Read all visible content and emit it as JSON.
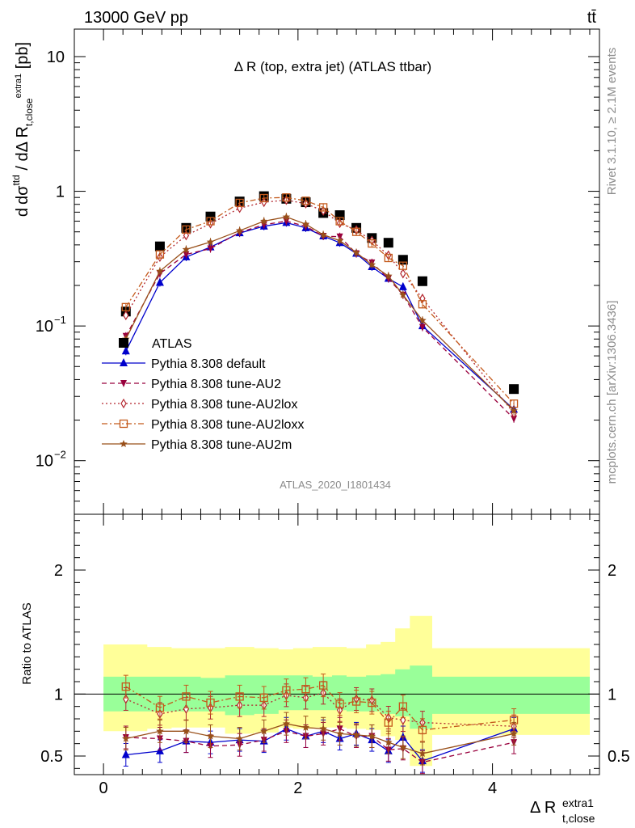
{
  "header": {
    "energy_label": "13000 GeV pp",
    "process_label": "tt̄"
  },
  "side_labels": {
    "rivet": "Rivet 3.1.10, ≥ 2.1M events",
    "mcplots": "mcplots.cern.ch [arXiv:1306.3436]"
  },
  "analysis_id": "ATLAS_2020_I1801434",
  "colors": {
    "data": "#000000",
    "default": "#0000cc",
    "au2": "#99003d",
    "au2lox": "#b3262e",
    "au2loxx": "#c45a1c",
    "au2m": "#99501a",
    "band_inner": "#99ff99",
    "band_outer": "#ffff99"
  },
  "chart_data": [
    {
      "type": "scatter",
      "title": "Δ R (top, extra jet) (ATLAS ttbar)",
      "ylabel": "dσ^ttd / dΔ R_t,close^extra1 [pb]",
      "yscale": "log",
      "ylim": [
        0.004,
        16
      ],
      "xlim": [
        -0.3,
        5.1
      ],
      "y_ticks": [
        {
          "value": 0.01,
          "base": "10",
          "exp": "−2"
        },
        {
          "value": 0.1,
          "base": "10",
          "exp": "−1"
        },
        {
          "value": 1,
          "base": "1",
          "exp": ""
        },
        {
          "value": 10,
          "base": "10",
          "exp": ""
        }
      ],
      "x": [
        0.23,
        0.58,
        0.85,
        1.1,
        1.4,
        1.65,
        1.88,
        2.08,
        2.26,
        2.43,
        2.6,
        2.76,
        2.93,
        3.08,
        3.28,
        4.22
      ],
      "series": [
        {
          "name": "ATLAS",
          "key": "data",
          "marker": "square",
          "values": [
            0.128,
            0.39,
            0.535,
            0.65,
            0.84,
            0.92,
            0.88,
            0.83,
            0.69,
            0.665,
            0.535,
            0.45,
            0.415,
            0.31,
            0.215,
            0.034
          ]
        },
        {
          "name": "Pythia 8.308 default",
          "key": "default",
          "marker": "triangle-up",
          "line": "solid",
          "values": [
            0.065,
            0.21,
            0.325,
            0.385,
            0.49,
            0.55,
            0.585,
            0.535,
            0.465,
            0.415,
            0.345,
            0.275,
            0.225,
            0.195,
            0.1,
            0.024
          ]
        },
        {
          "name": "Pythia 8.308 tune-AU2",
          "key": "au2",
          "marker": "triangle-down",
          "line": "dashed",
          "values": [
            0.084,
            0.245,
            0.34,
            0.375,
            0.495,
            0.565,
            0.6,
            0.55,
            0.465,
            0.46,
            0.345,
            0.295,
            0.225,
            0.17,
            0.098,
            0.0205
          ]
        },
        {
          "name": "Pythia 8.308 tune-AU2lox",
          "key": "au2lox",
          "marker": "diamond-open",
          "line": "dotted",
          "values": [
            0.12,
            0.325,
            0.47,
            0.575,
            0.75,
            0.83,
            0.86,
            0.81,
            0.715,
            0.58,
            0.515,
            0.43,
            0.335,
            0.245,
            0.16,
            0.0225
          ]
        },
        {
          "name": "Pythia 8.308 tune-AU2loxx",
          "key": "au2loxx",
          "marker": "square-open",
          "line": "dashdot",
          "values": [
            0.138,
            0.34,
            0.52,
            0.6,
            0.82,
            0.89,
            0.9,
            0.85,
            0.76,
            0.6,
            0.5,
            0.41,
            0.32,
            0.28,
            0.145,
            0.0265
          ]
        },
        {
          "name": "Pythia 8.308 tune-AU2m",
          "key": "au2m",
          "marker": "star",
          "line": "solid",
          "values": [
            0.08,
            0.255,
            0.37,
            0.42,
            0.51,
            0.6,
            0.645,
            0.57,
            0.475,
            0.43,
            0.35,
            0.285,
            0.235,
            0.17,
            0.11,
            0.0235
          ]
        }
      ]
    },
    {
      "type": "line",
      "ylabel": "Ratio to ATLAS",
      "xlabel": "Δ R_t,close^extra1",
      "ylim": [
        0.35,
        2.45
      ],
      "xlim": [
        -0.3,
        5.1
      ],
      "x_ticks": [
        "0",
        "2",
        "4"
      ],
      "y_ticks": [
        "0.5",
        "1",
        "2"
      ],
      "x": [
        0.23,
        0.58,
        0.85,
        1.1,
        1.4,
        1.65,
        1.88,
        2.08,
        2.26,
        2.43,
        2.6,
        2.76,
        2.93,
        3.08,
        3.28,
        4.22
      ],
      "bands": {
        "edges": [
          0.0,
          0.45,
          0.7,
          1.0,
          1.25,
          1.55,
          1.8,
          1.95,
          2.15,
          2.35,
          2.5,
          2.7,
          2.85,
          3.0,
          3.15,
          3.38,
          5.0
        ],
        "inner_low": [
          0.86,
          0.86,
          0.86,
          0.86,
          0.83,
          0.84,
          0.87,
          0.87,
          0.87,
          0.87,
          0.86,
          0.86,
          0.84,
          0.82,
          0.72,
          0.84
        ],
        "inner_high": [
          1.14,
          1.14,
          1.14,
          1.13,
          1.15,
          1.15,
          1.15,
          1.15,
          1.14,
          1.15,
          1.14,
          1.15,
          1.16,
          1.2,
          1.23,
          1.14
        ],
        "outer_low": [
          0.7,
          0.72,
          0.73,
          0.73,
          0.68,
          0.69,
          0.73,
          0.72,
          0.73,
          0.73,
          0.72,
          0.71,
          0.66,
          0.63,
          0.42,
          0.67
        ],
        "outer_high": [
          1.4,
          1.38,
          1.37,
          1.37,
          1.38,
          1.37,
          1.36,
          1.37,
          1.38,
          1.38,
          1.37,
          1.4,
          1.42,
          1.53,
          1.63,
          1.37
        ]
      },
      "series": [
        {
          "name": "Pythia 8.308 default",
          "key": "default",
          "values": [
            0.51,
            0.54,
            0.62,
            0.61,
            0.63,
            0.62,
            0.72,
            0.66,
            0.7,
            0.64,
            0.68,
            0.63,
            0.54,
            0.65,
            0.46,
            0.72
          ]
        },
        {
          "name": "Pythia 8.308 tune-AU2",
          "key": "au2",
          "values": [
            0.65,
            0.64,
            0.62,
            0.58,
            0.59,
            0.63,
            0.7,
            0.66,
            0.68,
            0.72,
            0.66,
            0.66,
            0.55,
            0.56,
            0.45,
            0.61
          ]
        },
        {
          "name": "Pythia 8.308 tune-AU2lox",
          "key": "au2lox",
          "values": [
            0.96,
            0.84,
            0.88,
            0.89,
            0.91,
            0.91,
            0.99,
            0.97,
            1.01,
            0.87,
            0.96,
            0.95,
            0.81,
            0.79,
            0.77,
            0.74
          ]
        },
        {
          "name": "Pythia 8.308 tune-AU2loxx",
          "key": "au2loxx",
          "values": [
            1.06,
            0.89,
            0.98,
            0.93,
            0.98,
            0.97,
            1.03,
            1.04,
            1.07,
            0.92,
            0.94,
            0.93,
            0.77,
            0.9,
            0.71,
            0.79
          ]
        },
        {
          "name": "Pythia 8.308 tune-AU2m",
          "key": "au2m",
          "values": [
            0.64,
            0.7,
            0.7,
            0.66,
            0.64,
            0.7,
            0.76,
            0.73,
            0.72,
            0.68,
            0.67,
            0.66,
            0.61,
            0.57,
            0.52,
            0.68
          ]
        }
      ]
    }
  ]
}
